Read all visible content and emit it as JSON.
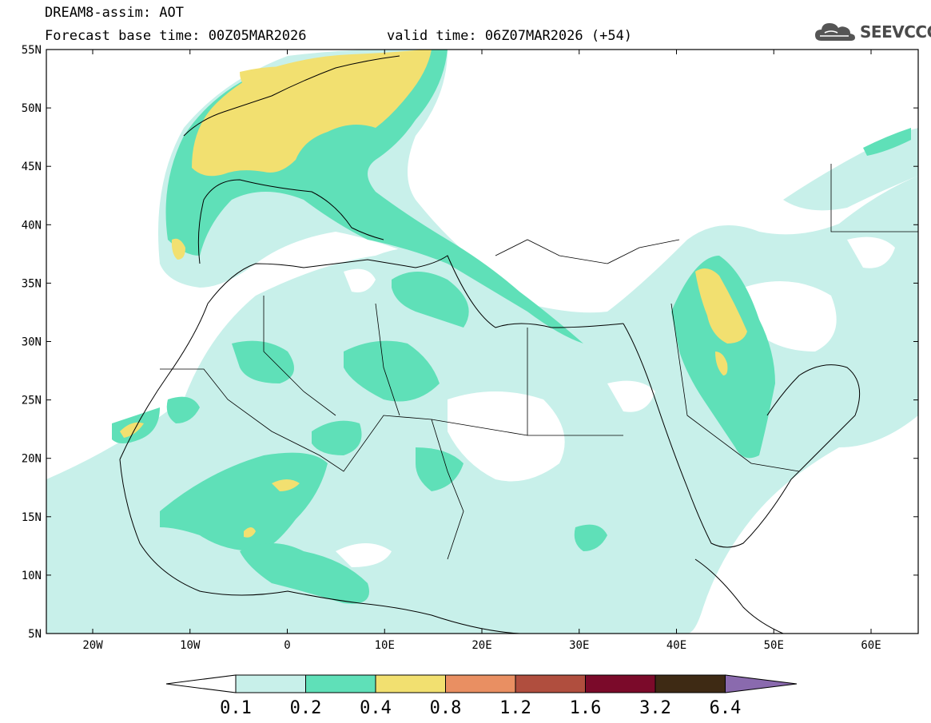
{
  "header": {
    "title": "DREAM8-assim: AOT",
    "base_time_line": "Forecast base time: 00Z05MAR2026",
    "valid_time_line": "valid time: 06Z07MAR2026 (+54)"
  },
  "logo": {
    "text": "SEEVCCC",
    "icon": "cloud-icon"
  },
  "axes": {
    "lat_labels": [
      "55N",
      "50N",
      "45N",
      "40N",
      "35N",
      "30N",
      "25N",
      "20N",
      "15N",
      "10N",
      "5N"
    ],
    "lon_labels": [
      "20W",
      "10W",
      "0",
      "10E",
      "20E",
      "30E",
      "40E",
      "50E",
      "60E"
    ]
  },
  "colorbar": {
    "levels": [
      "0.1",
      "0.2",
      "0.4",
      "0.8",
      "1.2",
      "1.6",
      "3.2",
      "6.4"
    ],
    "colors": [
      "#c8f0ea",
      "#5fe0b8",
      "#f2e070",
      "#e98f62",
      "#b04e3e",
      "#7b0a2a",
      "#3e2a14",
      "#8a6aae"
    ],
    "under_color": "#ffffff"
  },
  "colors": {
    "aot_01": "#c8f0ea",
    "aot_02": "#5fe0b8",
    "aot_04": "#f2e070",
    "land_border": "#000000"
  }
}
